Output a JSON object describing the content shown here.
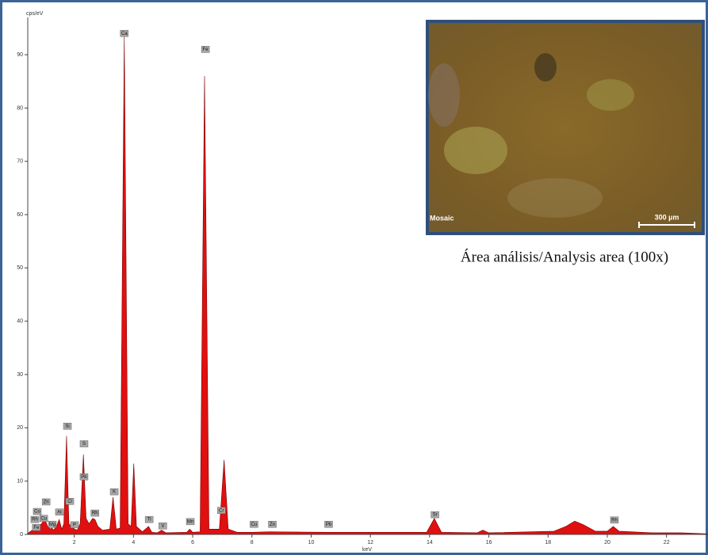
{
  "chart_data": {
    "type": "area",
    "ylabel": "cps/eV",
    "xlabel": "keV",
    "color": "#e01010",
    "edge_color": "#7a0000",
    "xlim": [
      0.43,
      23.4
    ],
    "ylim": [
      0,
      97
    ],
    "xticks": [
      2,
      4,
      6,
      8,
      10,
      12,
      14,
      16,
      18,
      20,
      22
    ],
    "yticks": [
      0,
      10,
      20,
      30,
      40,
      50,
      60,
      70,
      80,
      90
    ],
    "x": [
      0.45,
      0.9,
      1.0,
      1.1,
      1.2,
      1.25,
      1.3,
      1.4,
      1.49,
      1.58,
      1.65,
      1.74,
      1.82,
      1.9,
      2.01,
      2.1,
      2.2,
      2.31,
      2.4,
      2.5,
      2.62,
      2.7,
      2.8,
      2.95,
      3.2,
      3.31,
      3.42,
      3.55,
      3.69,
      3.82,
      3.92,
      4.01,
      4.1,
      4.3,
      4.51,
      4.62,
      4.8,
      4.95,
      5.1,
      5.8,
      5.9,
      6.0,
      6.25,
      6.4,
      6.55,
      6.9,
      7.06,
      7.2,
      7.5,
      8.0,
      8.6,
      10.5,
      13.9,
      14.16,
      14.4,
      15.6,
      15.8,
      16.0,
      18.2,
      18.6,
      18.9,
      19.2,
      19.6,
      20.0,
      20.2,
      20.4,
      21.5,
      22.5,
      23.4
    ],
    "values": [
      0.3,
      2,
      3,
      1.5,
      1,
      1.2,
      0.8,
      1.5,
      2.8,
      1,
      2,
      18.5,
      2,
      1.5,
      1,
      0.8,
      2,
      15,
      3,
      2,
      3,
      2.8,
      1.5,
      0.8,
      1,
      7,
      1,
      1.2,
      93.5,
      2,
      1.5,
      13.3,
      1.5,
      0.5,
      1.5,
      0.4,
      0.3,
      0.8,
      0.3,
      0.4,
      1,
      0.4,
      0.5,
      86,
      1,
      1,
      14,
      1,
      0.4,
      0.4,
      0.5,
      0.4,
      0.4,
      3,
      0.4,
      0.3,
      0.8,
      0.3,
      0.6,
      1.5,
      2.5,
      1.8,
      0.6,
      0.6,
      1.5,
      0.6,
      0.3,
      0.3,
      0.1
    ],
    "annotations": [
      {
        "text": "Ca",
        "x": 3.69,
        "y": 94
      },
      {
        "text": "Fe",
        "x": 6.43,
        "y": 91
      },
      {
        "text": "Si",
        "x": 1.77,
        "y": 20.3
      },
      {
        "text": "S",
        "x": 2.33,
        "y": 17
      },
      {
        "text": "Pb",
        "x": 2.33,
        "y": 10.8
      },
      {
        "text": "Cl",
        "x": 1.85,
        "y": 6.2
      },
      {
        "text": "K",
        "x": 3.35,
        "y": 8
      },
      {
        "text": "Rh",
        "x": 2.7,
        "y": 4
      },
      {
        "text": "Al",
        "x": 1.5,
        "y": 4.2
      },
      {
        "text": "Mg",
        "x": 1.26,
        "y": 1.9
      },
      {
        "text": "P",
        "x": 2.01,
        "y": 1.8
      },
      {
        "text": "Zn",
        "x": 1.05,
        "y": 6.1
      },
      {
        "text": "Co",
        "x": 0.75,
        "y": 4.3
      },
      {
        "text": "Cu",
        "x": 0.97,
        "y": 3
      },
      {
        "text": "Rh",
        "x": 0.67,
        "y": 2.8
      },
      {
        "text": "Fe",
        "x": 0.72,
        "y": 1.3
      },
      {
        "text": "Ti",
        "x": 4.53,
        "y": 2.8
      },
      {
        "text": "V",
        "x": 4.99,
        "y": 1.6
      },
      {
        "text": "Mn",
        "x": 5.92,
        "y": 2.4
      },
      {
        "text": "Cr",
        "x": 6.97,
        "y": 4.5
      },
      {
        "text": "Cu",
        "x": 8.07,
        "y": 1.9
      },
      {
        "text": "Zn",
        "x": 8.69,
        "y": 1.9
      },
      {
        "text": "Pb",
        "x": 10.59,
        "y": 1.9
      },
      {
        "text": "Sr",
        "x": 14.18,
        "y": 3.7
      },
      {
        "text": "Rh",
        "x": 20.24,
        "y": 2.7
      }
    ]
  },
  "inset": {
    "label": "Mosaic",
    "scale": "300 µm",
    "caption": "Área análisis/Analysis area (100x)"
  }
}
